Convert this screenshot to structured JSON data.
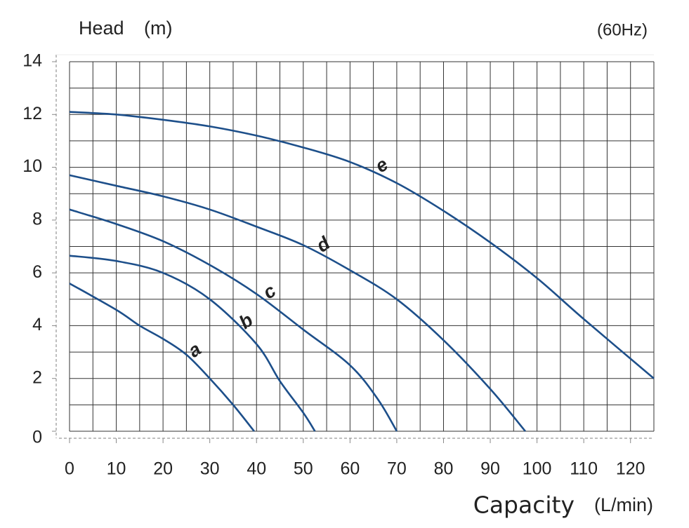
{
  "chart_data": {
    "type": "line",
    "ylabel": "Head",
    "yunit": "(m)",
    "frequency": "(60Hz)",
    "xlabel": "Capacity",
    "xunit": "(L/min)",
    "xlim": [
      0,
      125
    ],
    "ylim": [
      0,
      14
    ],
    "xticks": [
      0,
      10,
      20,
      30,
      40,
      50,
      60,
      70,
      80,
      90,
      100,
      110,
      120
    ],
    "yticks": [
      0,
      2,
      4,
      6,
      8,
      10,
      12,
      14
    ],
    "minor_xticks": [
      0,
      5,
      10,
      15,
      20,
      25,
      30,
      35,
      40,
      45,
      50,
      55,
      60,
      65,
      70,
      75,
      80,
      85,
      90,
      95,
      100,
      105,
      110,
      115,
      120,
      125
    ],
    "minor_yticks": [
      0,
      1,
      2,
      3,
      4,
      5,
      6,
      7,
      8,
      9,
      10,
      11,
      12,
      13,
      14
    ],
    "grid": true,
    "series": [
      {
        "name": "a",
        "color": "#1d4f8a",
        "x": [
          0,
          10,
          15,
          20,
          25,
          30,
          35,
          39.5
        ],
        "values": [
          5.6,
          4.6,
          4.0,
          3.5,
          2.9,
          2.0,
          1.0,
          0
        ]
      },
      {
        "name": "b",
        "color": "#1d4f8a",
        "x": [
          0,
          10,
          20,
          30,
          40,
          45,
          50,
          52.5
        ],
        "values": [
          6.65,
          6.45,
          6.0,
          5.0,
          3.3,
          1.9,
          0.7,
          0
        ]
      },
      {
        "name": "c",
        "color": "#1d4f8a",
        "x": [
          0,
          10,
          20,
          30,
          40,
          50,
          60,
          66,
          70
        ],
        "values": [
          8.4,
          7.85,
          7.2,
          6.3,
          5.2,
          3.85,
          2.5,
          1.2,
          0
        ]
      },
      {
        "name": "d",
        "color": "#1d4f8a",
        "x": [
          0,
          10,
          20,
          30,
          40,
          50,
          60,
          70,
          80,
          90,
          97.5
        ],
        "values": [
          9.7,
          9.3,
          8.9,
          8.4,
          7.75,
          7.05,
          6.1,
          5.0,
          3.45,
          1.6,
          0
        ]
      },
      {
        "name": "e",
        "color": "#1d4f8a",
        "x": [
          0,
          10,
          20,
          30,
          40,
          50,
          60,
          70,
          80,
          90,
          100,
          110,
          125
        ],
        "values": [
          12.1,
          12.0,
          11.8,
          11.55,
          11.2,
          10.75,
          10.2,
          9.4,
          8.35,
          7.15,
          5.8,
          4.25,
          2.0
        ]
      }
    ]
  }
}
